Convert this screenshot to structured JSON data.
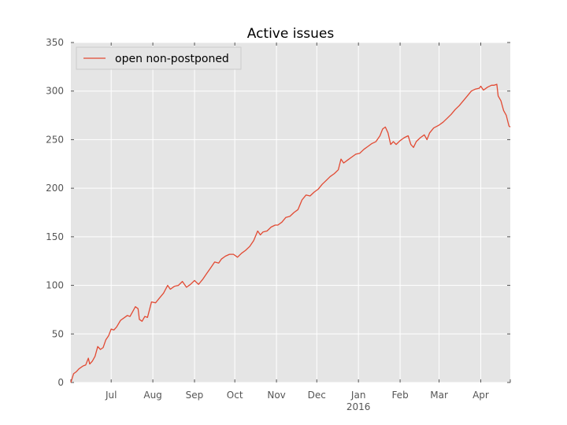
{
  "chart_data": {
    "type": "line",
    "title": "Active issues",
    "xlabel": "",
    "ylabel": "",
    "ylim": [
      0,
      350
    ],
    "yticks": [
      0,
      50,
      100,
      150,
      200,
      250,
      300,
      350
    ],
    "yticklabels": [
      "0",
      "50",
      "100",
      "150",
      "200",
      "250",
      "300",
      "350"
    ],
    "xlim": [
      "2015-06-01",
      "2016-04-23"
    ],
    "xticks": [
      {
        "date": "2015-07-01",
        "label": "Jul"
      },
      {
        "date": "2015-08-01",
        "label": "Aug"
      },
      {
        "date": "2015-09-01",
        "label": "Sep"
      },
      {
        "date": "2015-10-01",
        "label": "Oct"
      },
      {
        "date": "2015-11-01",
        "label": "Nov"
      },
      {
        "date": "2015-12-01",
        "label": "Dec"
      },
      {
        "date": "2016-01-01",
        "label": "Jan",
        "sublabel": "2016"
      },
      {
        "date": "2016-02-01",
        "label": "Feb"
      },
      {
        "date": "2016-03-01",
        "label": "Mar"
      },
      {
        "date": "2016-04-01",
        "label": "Apr"
      }
    ],
    "grid": true,
    "legend_position": "top-left",
    "series": [
      {
        "name": "open non-postponed",
        "color": "#e24a33",
        "points": [
          [
            "2015-06-01",
            0
          ],
          [
            "2015-06-03",
            9
          ],
          [
            "2015-06-05",
            11
          ],
          [
            "2015-06-07",
            14
          ],
          [
            "2015-06-10",
            17
          ],
          [
            "2015-06-12",
            18
          ],
          [
            "2015-06-14",
            25
          ],
          [
            "2015-06-15",
            19
          ],
          [
            "2015-06-17",
            22
          ],
          [
            "2015-06-19",
            27
          ],
          [
            "2015-06-21",
            37
          ],
          [
            "2015-06-23",
            34
          ],
          [
            "2015-06-25",
            36
          ],
          [
            "2015-06-27",
            44
          ],
          [
            "2015-06-29",
            48
          ],
          [
            "2015-07-01",
            55
          ],
          [
            "2015-07-03",
            54
          ],
          [
            "2015-07-05",
            57
          ],
          [
            "2015-07-08",
            64
          ],
          [
            "2015-07-11",
            67
          ],
          [
            "2015-07-13",
            69
          ],
          [
            "2015-07-15",
            68
          ],
          [
            "2015-07-17",
            73
          ],
          [
            "2015-07-19",
            78
          ],
          [
            "2015-07-21",
            76
          ],
          [
            "2015-07-22",
            65
          ],
          [
            "2015-07-24",
            63
          ],
          [
            "2015-07-26",
            68
          ],
          [
            "2015-07-28",
            67
          ],
          [
            "2015-07-31",
            83
          ],
          [
            "2015-08-03",
            82
          ],
          [
            "2015-08-06",
            87
          ],
          [
            "2015-08-09",
            92
          ],
          [
            "2015-08-12",
            100
          ],
          [
            "2015-08-14",
            96
          ],
          [
            "2015-08-17",
            99
          ],
          [
            "2015-08-20",
            100
          ],
          [
            "2015-08-23",
            104
          ],
          [
            "2015-08-26",
            98
          ],
          [
            "2015-08-29",
            101
          ],
          [
            "2015-09-01",
            105
          ],
          [
            "2015-09-04",
            101
          ],
          [
            "2015-09-07",
            106
          ],
          [
            "2015-09-10",
            112
          ],
          [
            "2015-09-13",
            118
          ],
          [
            "2015-09-16",
            124
          ],
          [
            "2015-09-19",
            123
          ],
          [
            "2015-09-21",
            127
          ],
          [
            "2015-09-24",
            130
          ],
          [
            "2015-09-27",
            132
          ],
          [
            "2015-09-30",
            132
          ],
          [
            "2015-10-03",
            129
          ],
          [
            "2015-10-06",
            133
          ],
          [
            "2015-10-09",
            136
          ],
          [
            "2015-10-12",
            140
          ],
          [
            "2015-10-15",
            146
          ],
          [
            "2015-10-18",
            156
          ],
          [
            "2015-10-20",
            152
          ],
          [
            "2015-10-22",
            155
          ],
          [
            "2015-10-25",
            156
          ],
          [
            "2015-10-28",
            160
          ],
          [
            "2015-10-31",
            162
          ],
          [
            "2015-11-02",
            162
          ],
          [
            "2015-11-05",
            165
          ],
          [
            "2015-11-08",
            170
          ],
          [
            "2015-11-11",
            171
          ],
          [
            "2015-11-14",
            175
          ],
          [
            "2015-11-17",
            178
          ],
          [
            "2015-11-20",
            188
          ],
          [
            "2015-11-23",
            193
          ],
          [
            "2015-11-26",
            192
          ],
          [
            "2015-11-29",
            196
          ],
          [
            "2015-12-02",
            199
          ],
          [
            "2015-12-05",
            204
          ],
          [
            "2015-12-08",
            208
          ],
          [
            "2015-12-11",
            212
          ],
          [
            "2015-12-14",
            215
          ],
          [
            "2015-12-17",
            219
          ],
          [
            "2015-12-19",
            230
          ],
          [
            "2015-12-21",
            226
          ],
          [
            "2015-12-24",
            229
          ],
          [
            "2015-12-27",
            232
          ],
          [
            "2015-12-30",
            235
          ],
          [
            "2016-01-02",
            236
          ],
          [
            "2016-01-05",
            240
          ],
          [
            "2016-01-08",
            243
          ],
          [
            "2016-01-11",
            246
          ],
          [
            "2016-01-14",
            248
          ],
          [
            "2016-01-17",
            254
          ],
          [
            "2016-01-19",
            261
          ],
          [
            "2016-01-21",
            263
          ],
          [
            "2016-01-23",
            257
          ],
          [
            "2016-01-25",
            245
          ],
          [
            "2016-01-27",
            248
          ],
          [
            "2016-01-29",
            245
          ],
          [
            "2016-02-01",
            249
          ],
          [
            "2016-02-04",
            252
          ],
          [
            "2016-02-07",
            254
          ],
          [
            "2016-02-09",
            245
          ],
          [
            "2016-02-11",
            242
          ],
          [
            "2016-02-13",
            248
          ],
          [
            "2016-02-16",
            252
          ],
          [
            "2016-02-19",
            255
          ],
          [
            "2016-02-21",
            250
          ],
          [
            "2016-02-23",
            257
          ],
          [
            "2016-02-26",
            262
          ],
          [
            "2016-03-01",
            265
          ],
          [
            "2016-03-04",
            268
          ],
          [
            "2016-03-07",
            272
          ],
          [
            "2016-03-10",
            276
          ],
          [
            "2016-03-13",
            281
          ],
          [
            "2016-03-16",
            285
          ],
          [
            "2016-03-19",
            290
          ],
          [
            "2016-03-22",
            295
          ],
          [
            "2016-03-25",
            300
          ],
          [
            "2016-03-28",
            302
          ],
          [
            "2016-03-31",
            303
          ],
          [
            "2016-04-01",
            305
          ],
          [
            "2016-04-03",
            301
          ],
          [
            "2016-04-06",
            304
          ],
          [
            "2016-04-09",
            306
          ],
          [
            "2016-04-11",
            306
          ],
          [
            "2016-04-13",
            307
          ],
          [
            "2016-04-14",
            295
          ],
          [
            "2016-04-16",
            290
          ],
          [
            "2016-04-18",
            280
          ],
          [
            "2016-04-20",
            275
          ],
          [
            "2016-04-22",
            264
          ],
          [
            "2016-04-23",
            263
          ]
        ]
      }
    ]
  }
}
